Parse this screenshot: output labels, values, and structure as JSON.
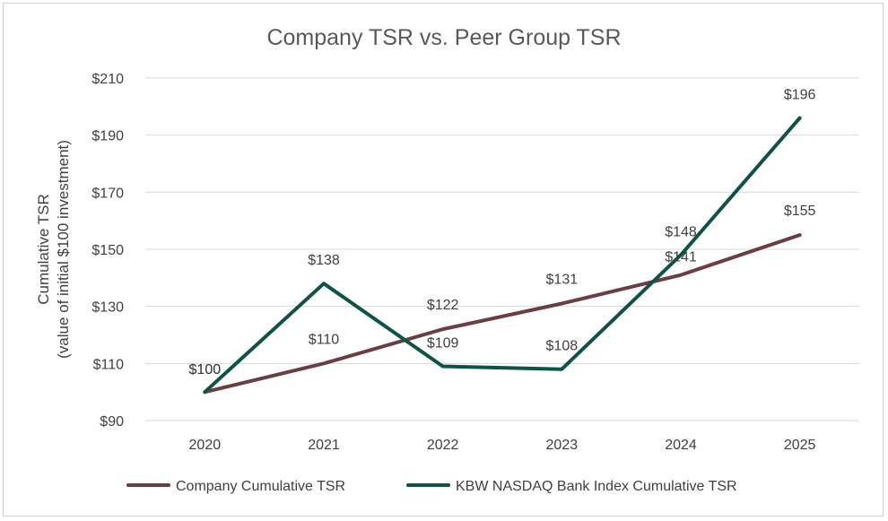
{
  "chart_data": {
    "type": "line",
    "title": "Company TSR vs. Peer Group TSR",
    "xlabel": "",
    "ylabel": [
      "Cumulative TSR",
      "(value of initial $100 investment)"
    ],
    "categories": [
      "2020",
      "2021",
      "2022",
      "2023",
      "2024",
      "2025"
    ],
    "ylim": [
      90,
      210
    ],
    "yticks": [
      90,
      110,
      130,
      150,
      170,
      190,
      210
    ],
    "ytick_labels": [
      "$90",
      "$110",
      "$130",
      "$150",
      "$170",
      "$190",
      "$210"
    ],
    "grid": true,
    "legend_position": "bottom",
    "series": [
      {
        "name": "Company Cumulative TSR",
        "color": "#6b3d44",
        "values": [
          100,
          110,
          122,
          131,
          141,
          155
        ],
        "labels": [
          "$100",
          "$110",
          "$122",
          "$131",
          "$141",
          "$155"
        ]
      },
      {
        "name": "KBW NASDAQ Bank Index Cumulative TSR",
        "color": "#0f5248",
        "values": [
          100,
          138,
          109,
          108,
          148,
          196
        ],
        "labels": [
          "$100",
          "$138",
          "$109",
          "$108",
          "$148",
          "$196"
        ]
      }
    ]
  }
}
